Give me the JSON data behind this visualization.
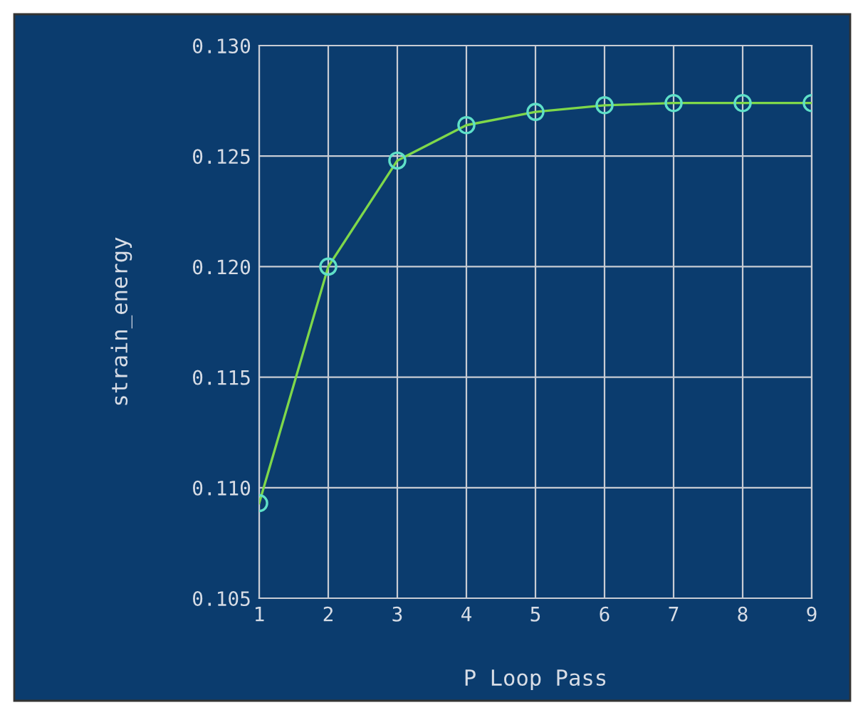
{
  "chart_data": {
    "type": "line",
    "xlabel": "P Loop Pass",
    "ylabel": "strain_energy",
    "x": [
      1,
      2,
      3,
      4,
      5,
      6,
      7,
      8,
      9
    ],
    "series": [
      {
        "color": "#7fd84a",
        "values": [
          0.1093,
          0.12,
          0.1248,
          0.1264,
          0.127,
          0.1273,
          0.1274,
          0.1274,
          0.1274
        ]
      }
    ],
    "xlim": [
      1,
      9
    ],
    "xticks": [
      1,
      2,
      3,
      4,
      5,
      6,
      7,
      8,
      9
    ],
    "ylim": [
      0.105,
      0.13
    ],
    "yticks": [
      0.105,
      {
        "value": 0.11,
        "label": "0.110"
      },
      0.115,
      {
        "value": 0.12,
        "label": "0.120"
      },
      0.125,
      {
        "value": 0.13,
        "label": "0.130"
      }
    ],
    "grid": true,
    "marker": "circle",
    "line_style": "solid"
  }
}
